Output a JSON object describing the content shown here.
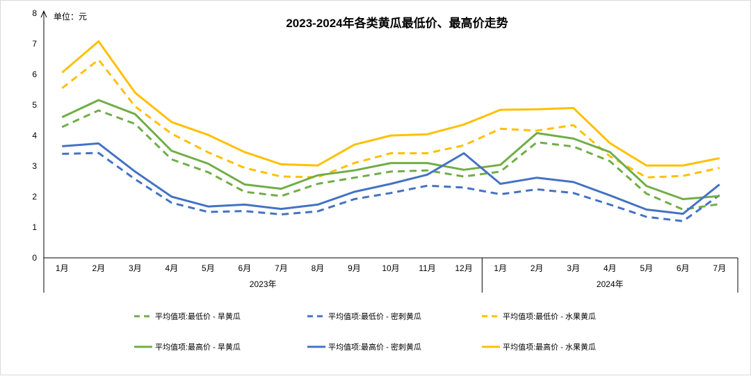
{
  "chart_data": {
    "type": "line",
    "title": "2023-2024年各类黄瓜最低价、最高价走势",
    "ylabel": "单位：元",
    "ylim": [
      0,
      8
    ],
    "yticks": [
      "0",
      "1",
      "2",
      "3",
      "4",
      "5",
      "6",
      "7",
      "8"
    ],
    "categories": [
      "1月",
      "2月",
      "3月",
      "4月",
      "5月",
      "6月",
      "7月",
      "8月",
      "9月",
      "10月",
      "11月",
      "12月",
      "1月",
      "2月",
      "3月",
      "4月",
      "5月",
      "6月",
      "7月"
    ],
    "year_groups": [
      {
        "label": "2023年",
        "count": 12
      },
      {
        "label": "2024年",
        "count": 7
      }
    ],
    "series": [
      {
        "name": "平均值项:最低价 - 旱黄瓜",
        "color": "#70AD47",
        "dashed": true,
        "values": [
          4.28,
          4.82,
          4.38,
          3.22,
          2.8,
          2.16,
          2.02,
          2.42,
          2.62,
          2.82,
          2.86,
          2.66,
          2.82,
          3.78,
          3.64,
          3.16,
          2.1,
          1.58,
          1.76
        ]
      },
      {
        "name": "平均值项:最低价 - 密刺黄瓜",
        "color": "#4472C4",
        "dashed": true,
        "values": [
          3.4,
          3.43,
          2.57,
          1.8,
          1.5,
          1.53,
          1.42,
          1.52,
          1.92,
          2.12,
          2.36,
          2.3,
          2.08,
          2.24,
          2.12,
          1.74,
          1.34,
          1.2,
          2.05
        ]
      },
      {
        "name": "平均值项:最低价 - 水果黄瓜",
        "color": "#FFC000",
        "dashed": true,
        "values": [
          5.55,
          6.48,
          4.95,
          4.06,
          3.45,
          2.94,
          2.66,
          2.64,
          3.1,
          3.42,
          3.42,
          3.68,
          4.22,
          4.16,
          4.34,
          3.32,
          2.63,
          2.68,
          2.94
        ]
      },
      {
        "name": "平均值项:最高价 - 旱黄瓜",
        "color": "#70AD47",
        "dashed": false,
        "values": [
          4.6,
          5.16,
          4.7,
          3.5,
          3.08,
          2.4,
          2.26,
          2.7,
          2.86,
          3.1,
          3.1,
          2.88,
          3.04,
          4.08,
          3.9,
          3.46,
          2.35,
          1.92,
          2.02
        ]
      },
      {
        "name": "平均值项:最高价 - 密刺黄瓜",
        "color": "#4472C4",
        "dashed": false,
        "values": [
          3.65,
          3.74,
          2.82,
          2.0,
          1.68,
          1.74,
          1.6,
          1.74,
          2.16,
          2.42,
          2.72,
          3.42,
          2.42,
          2.62,
          2.48,
          2.04,
          1.58,
          1.44,
          2.4
        ]
      },
      {
        "name": "平均值项:最高价 - 水果黄瓜",
        "color": "#FFC000",
        "dashed": false,
        "values": [
          6.06,
          7.08,
          5.4,
          4.44,
          4.02,
          3.46,
          3.06,
          3.02,
          3.7,
          4.0,
          4.04,
          4.36,
          4.84,
          4.86,
          4.9,
          3.75,
          3.02,
          3.02,
          3.26
        ]
      }
    ],
    "legend_position": "bottom",
    "grid": false
  }
}
